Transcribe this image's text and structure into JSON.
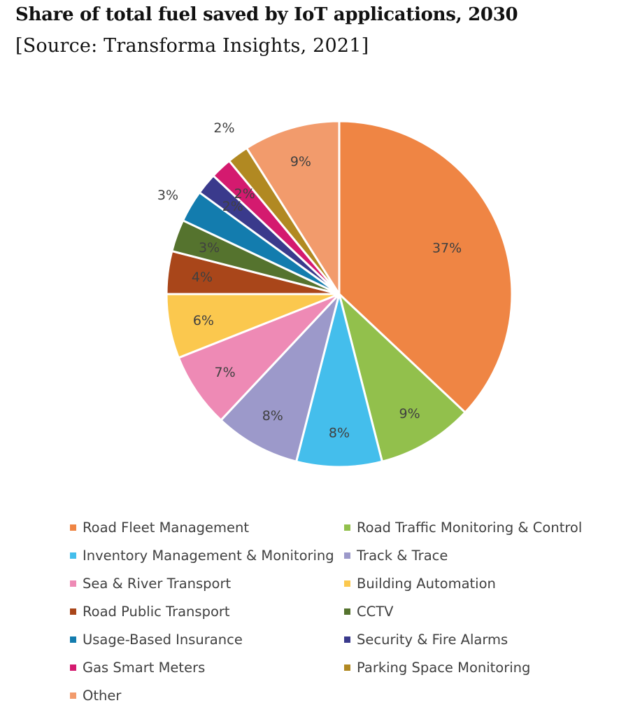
{
  "header": {
    "title": "Share of total fuel saved by IoT applications, 2030",
    "source": "[Source: Transforma Insights, 2021]"
  },
  "chart_data": {
    "type": "pie",
    "title": "Share of total fuel saved by IoT applications, 2030",
    "subtitle": "[Source: Transforma Insights, 2021]",
    "legend_position": "bottom",
    "start_angle_deg": 0,
    "direction": "clockwise",
    "slices": [
      {
        "name": "Road Fleet Management",
        "value": 37,
        "label": "37%",
        "color": "#EF8544"
      },
      {
        "name": "Road Traffic Monitoring & Control",
        "value": 9,
        "label": "9%",
        "color": "#92C04C"
      },
      {
        "name": "Inventory Management & Monitoring",
        "value": 8,
        "label": "8%",
        "color": "#44BEEC"
      },
      {
        "name": "Track & Trace",
        "value": 8,
        "label": "8%",
        "color": "#9C99CA"
      },
      {
        "name": "Sea & River Transport",
        "value": 7,
        "label": "7%",
        "color": "#EE8AB5"
      },
      {
        "name": "Building Automation",
        "value": 6,
        "label": "6%",
        "color": "#FBC84E"
      },
      {
        "name": "Road Public Transport",
        "value": 4,
        "label": "4%",
        "color": "#A9461A"
      },
      {
        "name": "CCTV",
        "value": 3,
        "label": "3%",
        "color": "#55732E"
      },
      {
        "name": "Usage-Based Insurance",
        "value": 3,
        "label": "3%",
        "color": "#137CAE"
      },
      {
        "name": "Security & Fire Alarms",
        "value": 2,
        "label": "2%",
        "color": "#3A3A8C"
      },
      {
        "name": "Gas Smart Meters",
        "value": 2,
        "label": "2%",
        "color": "#D41A6F"
      },
      {
        "name": "Parking Space Monitoring",
        "value": 2,
        "label": "2%",
        "color": "#B18922"
      },
      {
        "name": "Other",
        "value": 9,
        "label": "9%",
        "color": "#F29B6C"
      }
    ]
  }
}
